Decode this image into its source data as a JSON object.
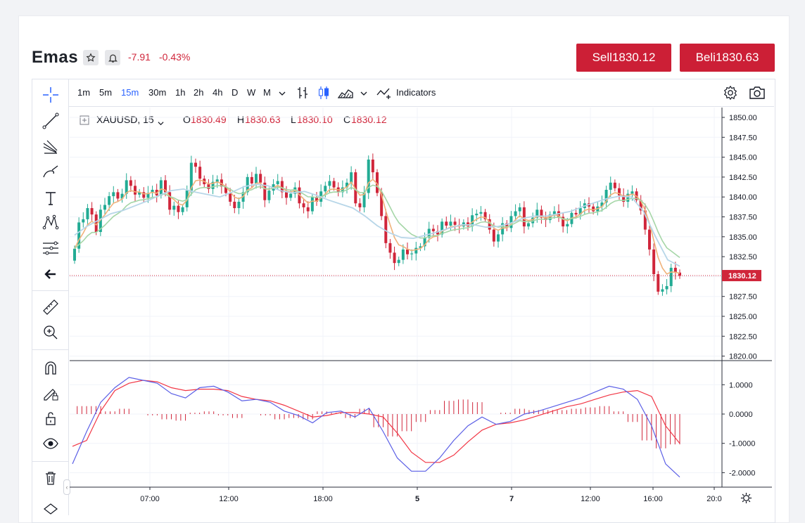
{
  "header": {
    "title": "Emas",
    "change_abs": "-7.91",
    "change_pct": "-0.43%",
    "sell_label": "Sell",
    "sell_price": "1830.12",
    "buy_label": "Beli",
    "buy_price": "1830.63"
  },
  "toolbar": {
    "timeframes": [
      "1m",
      "5m",
      "15m",
      "30m",
      "1h",
      "2h",
      "4h",
      "D",
      "W",
      "M"
    ],
    "active_timeframe": "15m",
    "indicators_label": "Indicators"
  },
  "legend": {
    "symbol": "XAUUSD, 15",
    "open_label": "O",
    "open": "1830.49",
    "high_label": "H",
    "high": "1830.63",
    "low_label": "L",
    "low": "1830.10",
    "close_label": "C",
    "close": "1830.12"
  },
  "colors": {
    "up": "#22ab94",
    "down": "#d0263b",
    "accent": "#2962ff",
    "ema_fast": "#f0b27a",
    "ema_mid": "#a5d6a7",
    "ema_slow": "#b7d6e8",
    "macd": "#5b5fe6",
    "signal": "#f23645"
  },
  "chart_data": [
    {
      "type": "candlestick",
      "symbol": "XAUUSD",
      "interval": "15",
      "y_ticks": [
        "1850.00",
        "1847.50",
        "1845.00",
        "1842.50",
        "1840.00",
        "1837.50",
        "1835.00",
        "1832.50",
        "1830.00",
        "1827.50",
        "1825.00",
        "1822.50",
        "1820.00"
      ],
      "ylim": [
        1820,
        1851
      ],
      "x_ticks": [
        "07:00",
        "12:00",
        "18:00",
        "5",
        "7",
        "12:00",
        "16:00",
        "20:0"
      ],
      "last_price": "1830.12",
      "closes": [
        1833.5,
        1836.8,
        1837.2,
        1838.6,
        1837.8,
        1835.6,
        1838.4,
        1839.0,
        1840.1,
        1840.6,
        1839.8,
        1840.4,
        1842.1,
        1841.4,
        1840.3,
        1840.6,
        1839.9,
        1840.5,
        1840.9,
        1840.2,
        1842.1,
        1840.6,
        1838.4,
        1838.9,
        1838.1,
        1838.7,
        1840.8,
        1844.3,
        1843.8,
        1842.3,
        1841.6,
        1841.0,
        1841.9,
        1842.2,
        1841.3,
        1840.5,
        1839.4,
        1838.6,
        1839.4,
        1840.6,
        1842.5,
        1841.7,
        1842.9,
        1841.8,
        1839.6,
        1840.8,
        1841.6,
        1842.0,
        1840.6,
        1839.9,
        1840.4,
        1841.2,
        1839.2,
        1838.7,
        1838.2,
        1840.0,
        1839.4,
        1840.7,
        1841.4,
        1842.0,
        1841.2,
        1840.6,
        1841.2,
        1841.8,
        1843.1,
        1839.2,
        1838.7,
        1840.5,
        1844.7,
        1843.1,
        1840.5,
        1837.6,
        1834.2,
        1833.0,
        1831.7,
        1832.1,
        1833.4,
        1832.8,
        1832.9,
        1833.6,
        1833.8,
        1834.9,
        1836.0,
        1835.7,
        1835.3,
        1836.9,
        1836.4,
        1836.9,
        1836.5,
        1836.3,
        1836.8,
        1836.3,
        1837.7,
        1837.9,
        1838.1,
        1837.2,
        1835.9,
        1834.4,
        1835.3,
        1836.7,
        1836.1,
        1837.6,
        1838.2,
        1838.7,
        1836.3,
        1836.7,
        1837.4,
        1838.4,
        1837.4,
        1837.1,
        1837.8,
        1838.2,
        1837.5,
        1836.3,
        1836.6,
        1838.0,
        1837.8,
        1838.6,
        1839.2,
        1838.8,
        1838.2,
        1838.8,
        1839.3,
        1840.9,
        1841.8,
        1841.1,
        1840.2,
        1839.4,
        1840.4,
        1840.7,
        1839.6,
        1838.3,
        1835.9,
        1833.4,
        1830.3,
        1828.1,
        1828.4,
        1828.8,
        1831.1,
        1830.5,
        1830.1
      ],
      "ema_values": [
        1835.2,
        1836.3,
        1837.1,
        1837.9,
        1838.3,
        1838.9,
        1839.5,
        1840.2,
        1840.8,
        1841.0,
        1840.6,
        1840.3,
        1840.0,
        1840.6,
        1841.3,
        1841.6,
        1841.4,
        1840.8,
        1840.5,
        1840.7,
        1840.2,
        1839.6,
        1839.1,
        1838.6,
        1837.6,
        1836.4,
        1835.5,
        1834.9,
        1834.8,
        1835.2,
        1835.6,
        1836.1,
        1836.5,
        1836.5,
        1836.2,
        1836.3,
        1836.7,
        1837.3,
        1837.6,
        1837.6,
        1837.9,
        1838.2,
        1838.8,
        1839.3,
        1839.8,
        1840.1,
        1840.0,
        1838.2,
        1835.0,
        1832.1,
        1831.3
      ],
      "macd": [
        -1.7,
        -0.6,
        0.4,
        0.9,
        1.25,
        1.15,
        1.05,
        0.7,
        0.55,
        0.9,
        0.95,
        0.75,
        0.45,
        0.5,
        0.4,
        0.1,
        -0.05,
        -0.3,
        0.05,
        0.1,
        -0.1,
        0.2,
        -0.6,
        -1.5,
        -1.95,
        -1.95,
        -1.5,
        -0.9,
        -0.4,
        -0.1,
        -0.35,
        -0.25,
        0.0,
        0.1,
        0.25,
        0.4,
        0.55,
        0.75,
        0.95,
        0.85,
        0.5,
        -0.4,
        -1.7,
        -2.15
      ],
      "signal": [
        -1.1,
        -0.9,
        0.1,
        0.8,
        1.05,
        1.15,
        1.1,
        0.9,
        0.8,
        0.85,
        0.85,
        0.8,
        0.6,
        0.5,
        0.45,
        0.3,
        0.1,
        -0.1,
        -0.05,
        0.05,
        0.05,
        0.0,
        -0.1,
        -0.65,
        -1.3,
        -1.65,
        -1.65,
        -1.4,
        -0.95,
        -0.55,
        -0.35,
        -0.3,
        -0.2,
        -0.05,
        0.1,
        0.25,
        0.35,
        0.5,
        0.65,
        0.75,
        0.8,
        0.6,
        -0.4,
        -1.0
      ],
      "macd_ticks": [
        "1.0000",
        "0.0000",
        "-1.0000",
        "-2.0000"
      ],
      "macd_ylim": [
        -2.2,
        1.4
      ]
    }
  ]
}
